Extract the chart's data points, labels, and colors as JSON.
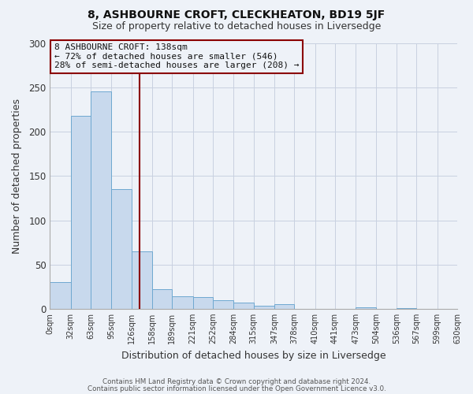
{
  "title": "8, ASHBOURNE CROFT, CLECKHEATON, BD19 5JF",
  "subtitle": "Size of property relative to detached houses in Liversedge",
  "xlabel": "Distribution of detached houses by size in Liversedge",
  "ylabel": "Number of detached properties",
  "bin_edges": [
    0,
    32,
    63,
    95,
    126,
    158,
    189,
    221,
    252,
    284,
    315,
    347,
    378,
    410,
    441,
    473,
    504,
    536,
    567,
    599,
    630
  ],
  "bin_labels": [
    "0sqm",
    "32sqm",
    "63sqm",
    "95sqm",
    "126sqm",
    "158sqm",
    "189sqm",
    "221sqm",
    "252sqm",
    "284sqm",
    "315sqm",
    "347sqm",
    "378sqm",
    "410sqm",
    "441sqm",
    "473sqm",
    "504sqm",
    "536sqm",
    "567sqm",
    "599sqm",
    "630sqm"
  ],
  "bar_heights": [
    30,
    218,
    246,
    135,
    65,
    22,
    14,
    13,
    10,
    7,
    3,
    5,
    0,
    0,
    0,
    2,
    0,
    1,
    0,
    0
  ],
  "bar_color": "#c8d9ed",
  "bar_edgecolor": "#6ea8d0",
  "vline_x": 138,
  "vline_color": "#8b0000",
  "ylim": [
    0,
    300
  ],
  "yticks": [
    0,
    50,
    100,
    150,
    200,
    250,
    300
  ],
  "annotation_title": "8 ASHBOURNE CROFT: 138sqm",
  "annotation_line1": "← 72% of detached houses are smaller (546)",
  "annotation_line2": "28% of semi-detached houses are larger (208) →",
  "annotation_box_edgecolor": "#8b0000",
  "footer_line1": "Contains HM Land Registry data © Crown copyright and database right 2024.",
  "footer_line2": "Contains public sector information licensed under the Open Government Licence v3.0.",
  "background_color": "#eef2f8"
}
